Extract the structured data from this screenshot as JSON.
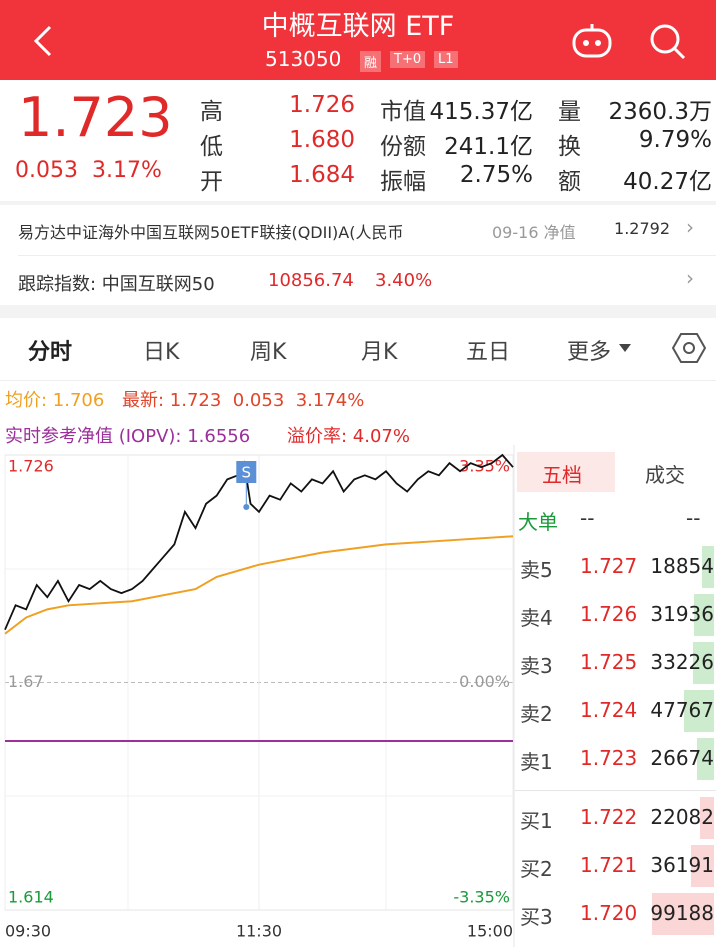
{
  "header": {
    "title": "中概互联网 ETF",
    "code": "513050",
    "badges": [
      "融",
      "T+0",
      "L1"
    ]
  },
  "quote": {
    "price": "1.723",
    "change": "0.053",
    "change_pct": "3.17%",
    "stats": [
      [
        {
          "label": "高",
          "value": "1.726"
        },
        {
          "label": "市值",
          "value": "415.37亿"
        },
        {
          "label": "量",
          "value": "2360.3万"
        }
      ],
      [
        {
          "label": "低",
          "value": "1.680"
        },
        {
          "label": "份额",
          "value": "241.1亿"
        },
        {
          "label": "换",
          "value": "9.79%"
        }
      ],
      [
        {
          "label": "开",
          "value": "1.684"
        },
        {
          "label": "振幅",
          "value": "2.75%"
        },
        {
          "label": "额",
          "value": "40.27亿"
        }
      ]
    ]
  },
  "fund_link": {
    "name": "易方达中证海外中国互联网50ETF联接(QDII)A(人民币",
    "nav_label": "09-16 净值",
    "nav": "1.2792"
  },
  "index_link": {
    "name": "跟踪指数: 中国互联网50",
    "value": "10856.74",
    "change_pct": "3.40%"
  },
  "tabs": [
    "分时",
    "日K",
    "周K",
    "月K",
    "五日",
    "更多"
  ],
  "legend": {
    "avg": "均价: 1.706",
    "latest": "最新: 1.723  0.053  3.174%",
    "iopv": "实时参考净值 (IOPV): 1.6556",
    "premium": "溢价率: 4.07%"
  },
  "chart_data": {
    "type": "line",
    "xlim": [
      0,
      240
    ],
    "xticks": [
      {
        "value": 0,
        "label": "09:30"
      },
      {
        "value": 120,
        "label": "11:30"
      },
      {
        "value": 240,
        "label": "15:00"
      }
    ],
    "ylim": [
      1.614,
      1.726
    ],
    "yticks": [
      1.726,
      1.67,
      1.614
    ],
    "y2lim": [
      -3.35,
      3.35
    ],
    "y2ticks": [
      {
        "value": 3.35,
        "label": "3.35%"
      },
      {
        "value": 0,
        "label": "0.00%"
      },
      {
        "value": -3.35,
        "label": "-3.35%"
      }
    ],
    "series": [
      {
        "color": "#111111",
        "x": [
          0,
          5,
          10,
          15,
          20,
          25,
          30,
          35,
          40,
          45,
          50,
          55,
          60,
          65,
          70,
          75,
          80,
          85,
          90,
          95,
          100,
          105,
          110,
          113,
          116,
          120,
          125,
          130,
          135,
          140,
          145,
          150,
          155,
          160,
          165,
          170,
          175,
          180,
          185,
          190,
          195,
          200,
          205,
          210,
          215,
          220,
          225,
          230,
          235,
          240
        ],
        "values": [
          1.683,
          1.689,
          1.688,
          1.694,
          1.691,
          1.695,
          1.69,
          1.694,
          1.693,
          1.695,
          1.693,
          1.692,
          1.693,
          1.695,
          1.698,
          1.701,
          1.704,
          1.712,
          1.708,
          1.714,
          1.716,
          1.72,
          1.721,
          1.724,
          1.714,
          1.712,
          1.716,
          1.715,
          1.719,
          1.717,
          1.72,
          1.719,
          1.722,
          1.717,
          1.72,
          1.721,
          1.72,
          1.722,
          1.719,
          1.717,
          1.72,
          1.722,
          1.721,
          1.724,
          1.722,
          1.724,
          1.723,
          1.724,
          1.726,
          1.723
        ]
      },
      {
        "color": "#f0a020",
        "x": [
          0,
          10,
          20,
          30,
          60,
          90,
          100,
          120,
          150,
          180,
          210,
          240
        ],
        "values": [
          1.682,
          1.686,
          1.688,
          1.689,
          1.69,
          1.693,
          1.696,
          1.699,
          1.702,
          1.704,
          1.705,
          1.706
        ]
      }
    ],
    "iopv": 1.6556,
    "iopv_color": "#9b2f9b",
    "marker": {
      "label": "S",
      "x": 114
    }
  },
  "order_book": {
    "tabs": [
      "五档",
      "成交"
    ],
    "big_order": {
      "label": "大单",
      "values": [
        "--",
        "--"
      ]
    },
    "asks": [
      {
        "label": "卖5",
        "price": "1.727",
        "volume": 18854
      },
      {
        "label": "卖4",
        "price": "1.726",
        "volume": 31936
      },
      {
        "label": "卖3",
        "price": "1.725",
        "volume": 33226
      },
      {
        "label": "卖2",
        "price": "1.724",
        "volume": 47767
      },
      {
        "label": "卖1",
        "price": "1.723",
        "volume": 26674
      }
    ],
    "bids": [
      {
        "label": "买1",
        "price": "1.722",
        "volume": 22082
      },
      {
        "label": "买2",
        "price": "1.721",
        "volume": 36191
      },
      {
        "label": "买3",
        "price": "1.720",
        "volume": 99188
      }
    ]
  }
}
